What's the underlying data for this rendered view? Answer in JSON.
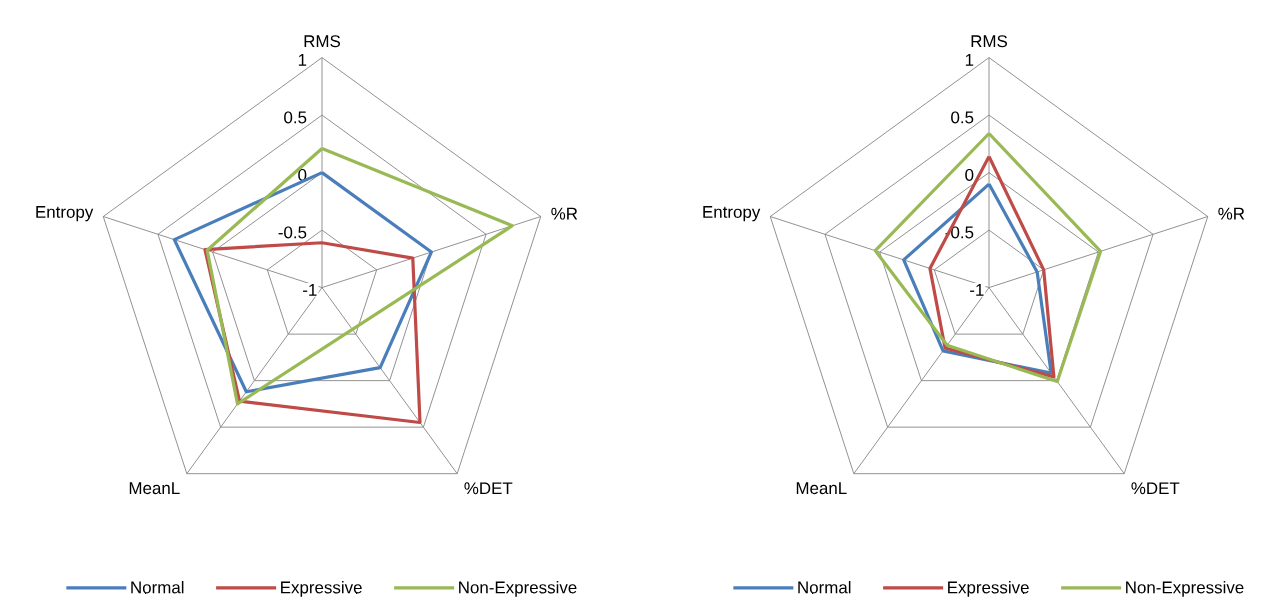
{
  "chart_data": [
    {
      "type": "radar",
      "categories": [
        "RMS",
        "%R",
        "%DET",
        "MeanL",
        "Entropy"
      ],
      "ylim": [
        -1,
        1
      ],
      "yticks": [
        -1,
        -0.5,
        0,
        0.5,
        1
      ],
      "grid": true,
      "legend": "bottom",
      "series": [
        {
          "name": "Normal",
          "color": "#4a7ebb",
          "values": [
            0,
            0,
            -0.14,
            0.12,
            0.35
          ]
        },
        {
          "name": "Expressive",
          "color": "#be4b48",
          "values": [
            -0.61,
            -0.17,
            0.45,
            0.22,
            0.07
          ]
        },
        {
          "name": "Non-Expressive",
          "color": "#98b954",
          "values": [
            0.21,
            0.74,
            -0.55,
            0.25,
            0.05
          ]
        }
      ]
    },
    {
      "type": "radar",
      "categories": [
        "RMS",
        "%R",
        "%DET",
        "MeanL",
        "Entropy"
      ],
      "ylim": [
        -1,
        1
      ],
      "yticks": [
        -1,
        -0.5,
        0,
        0.5,
        1
      ],
      "grid": true,
      "legend": "bottom",
      "series": [
        {
          "name": "Normal",
          "color": "#4a7ebb",
          "values": [
            -0.1,
            -0.56,
            -0.08,
            -0.32,
            -0.22
          ]
        },
        {
          "name": "Expressive",
          "color": "#be4b48",
          "values": [
            0.14,
            -0.5,
            -0.04,
            -0.35,
            -0.46
          ]
        },
        {
          "name": "Non-Expressive",
          "color": "#98b954",
          "values": [
            0.34,
            0.02,
            0.01,
            -0.38,
            0.04
          ]
        }
      ]
    }
  ]
}
